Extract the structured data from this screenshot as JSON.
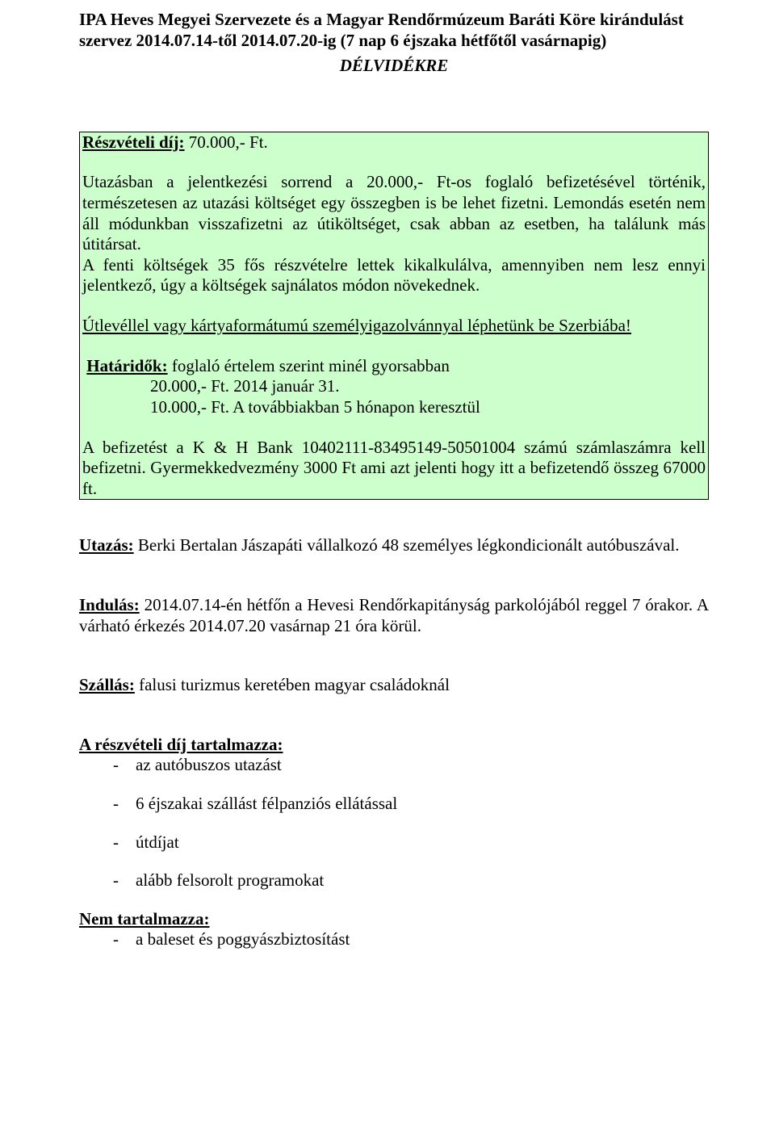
{
  "header": {
    "line1": "IPA Heves Megyei Szervezete és a Magyar Rendőrmúzeum Baráti Köre kirándulást szervez 2014.07.14-től 2014.07.20-ig (7 nap 6 éjszaka hétfőtől vasárnapig)",
    "destination": "DÉLVIDÉKRE"
  },
  "box": {
    "fee_label": "Részvételi díj:",
    "fee_value": " 70.000,- Ft.",
    "para1": "Utazásban a jelentkezési sorrend a 20.000,- Ft-os foglaló befizetésével történik, természetesen az utazási költséget egy összegben is be lehet fizetni. Lemondás esetén nem áll módunkban visszafizetni az útiköltséget, csak abban az esetben, ha találunk más útitársat.",
    "para2": "A fenti költségek 35 fős részvételre lettek kikalkulálva, amennyiben nem lesz ennyi jelentkező, úgy a költségek sajnálatos módon növekednek.",
    "para3": "Útlevéllel vagy kártyaformátumú személyigazolvánnyal léphetünk be Szerbiába!",
    "deadlines_label": "Határidők:",
    "deadlines_rest": " foglaló értelem szerint minél gyorsabban",
    "deadline_line1": "20.000,- Ft. 2014  január 31.",
    "deadline_line2": "10.000,- Ft.  A továbbiakban 5 hónapon keresztül",
    "para4": "A befizetést a K & H Bank 10402111-83495149-50501004 számú számlaszámra kell befizetni. Gyermekkedvezmény 3000 Ft ami azt jelenti hogy itt a befizetendő összeg 67000 ft."
  },
  "sections": {
    "travel_label": "Utazás:",
    "travel_text": " Berki Bertalan Jászapáti vállalkozó 48 személyes légkondicionált autóbuszával.",
    "depart_label": "Indulás:",
    "depart_text": " 2014.07.14-én hétfőn a Hevesi Rendőrkapitányság parkolójából reggel 7 órakor. A várható érkezés 2014.07.20 vasárnap 21 óra körül.",
    "accom_label": "Szállás:",
    "accom_text": " falusi turizmus keretében magyar családoknál",
    "includes_label": "A részvételi díj tartalmazza:",
    "includes_items": [
      "az autóbuszos utazást",
      "6 éjszakai szállást félpanziós ellátással",
      "útdíjat",
      "alább felsorolt programokat"
    ],
    "excludes_label": "Nem tartalmazza:",
    "excludes_items": [
      "a baleset és poggyászbiztosítást"
    ]
  },
  "colors": {
    "box_bg": "#ccffcc",
    "box_border": "#000000",
    "text": "#000000",
    "page_bg": "#ffffff"
  },
  "typography": {
    "font_family": "Times New Roman",
    "body_fontsize_pt": 16,
    "header_weight": "bold"
  }
}
